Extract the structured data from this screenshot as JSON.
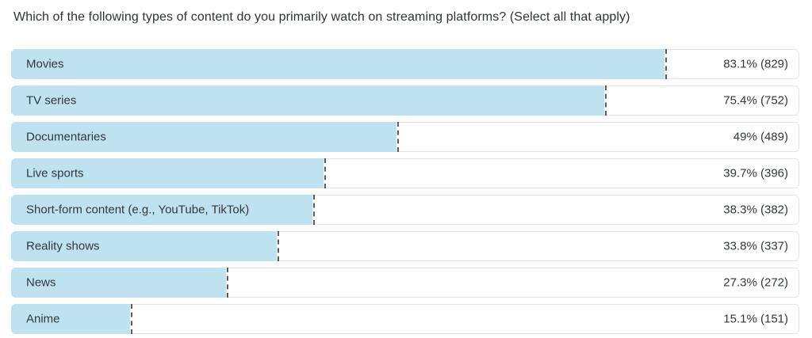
{
  "title": "Which of the following types of content do you primarily watch on streaming platforms? (Select all that apply)",
  "colors": {
    "bar_fill": "#bee2f0",
    "row_border": "#e3e4e5",
    "dash_line": "#585d62",
    "text": "#33383d",
    "background": "#ffffff"
  },
  "chart_data": {
    "type": "bar",
    "orientation": "horizontal",
    "title": "Which of the following types of content do you primarily watch on streaming platforms? (Select all that apply)",
    "xlim": [
      0,
      100
    ],
    "unit": "percent",
    "grid": false,
    "legend": false,
    "categories": [
      "Movies",
      "TV series",
      "Documentaries",
      "Live sports",
      "Short-form content (e.g., YouTube, TikTok)",
      "Reality shows",
      "News",
      "Anime"
    ],
    "values": [
      83.1,
      75.4,
      49,
      39.7,
      38.3,
      33.8,
      27.3,
      15.1
    ],
    "counts": [
      829,
      752,
      489,
      396,
      382,
      337,
      272,
      151
    ],
    "value_labels": [
      "83.1% (829)",
      "75.4% (752)",
      "49% (489)",
      "39.7% (396)",
      "38.3% (382)",
      "33.8% (337)",
      "27.3% (272)",
      "15.1% (151)"
    ]
  }
}
